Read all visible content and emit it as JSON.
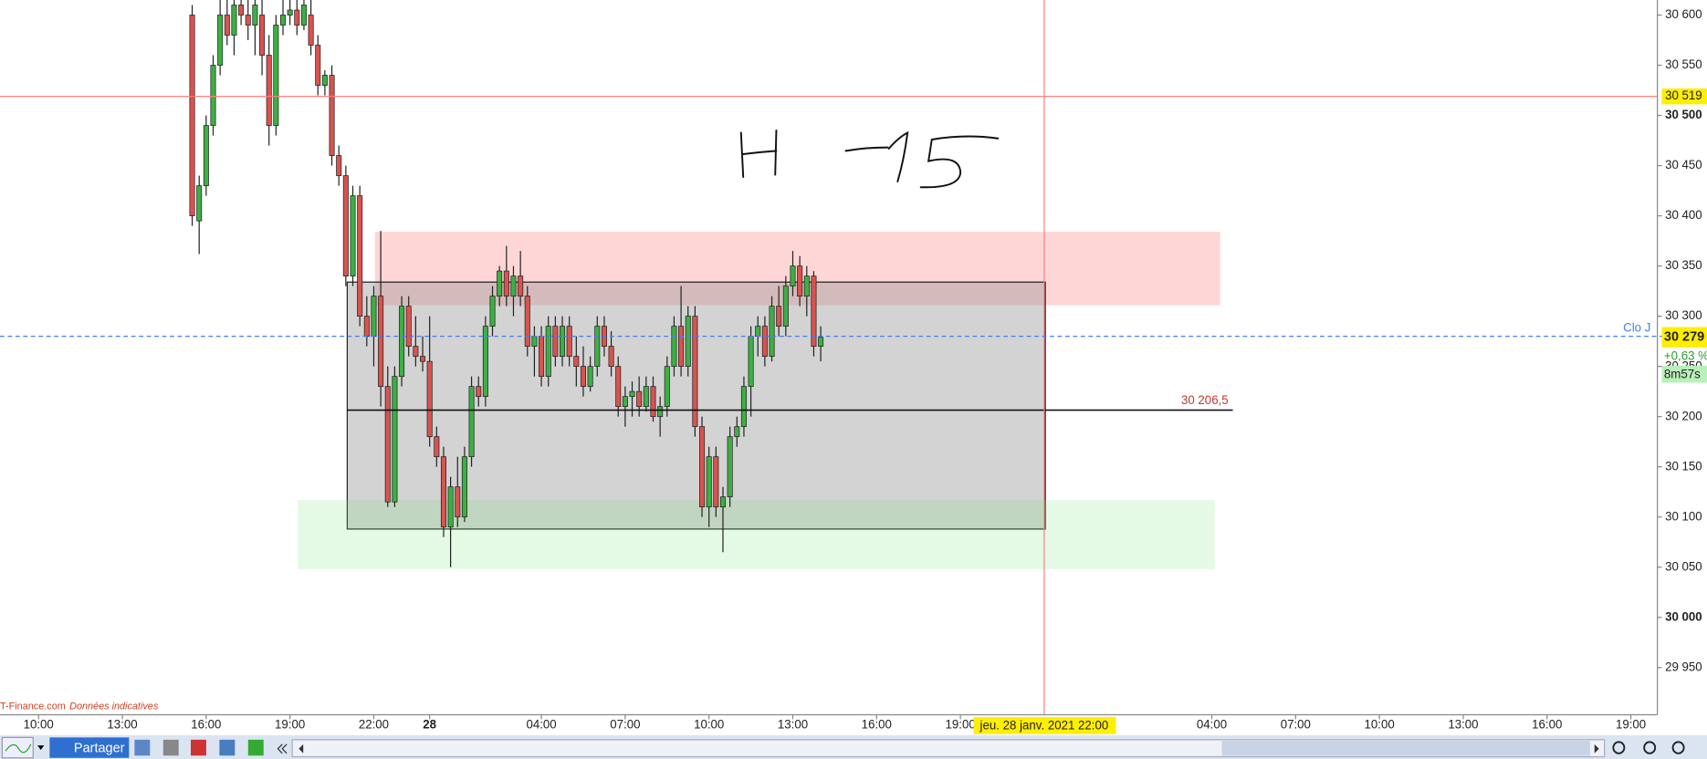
{
  "chart_data": {
    "type": "candlestick",
    "x": [
      15.5,
      15.75,
      16,
      16.25,
      16.5,
      16.75,
      17,
      17.25,
      17.5,
      17.75,
      18,
      18.25,
      18.5,
      18.75,
      19,
      19.25,
      19.5,
      19.75,
      20,
      20.25,
      20.5,
      20.75,
      21,
      21.25,
      21.5,
      21.75,
      22,
      22.25,
      22.5,
      22.75,
      23,
      23.25,
      23.5,
      23.75,
      24,
      24.25,
      24.5,
      24.75,
      25,
      25.25,
      25.5,
      25.75,
      26,
      26.25,
      26.5,
      26.75,
      27,
      27.25,
      27.5,
      27.75,
      28,
      28.25,
      28.5,
      28.75,
      29,
      29.25,
      29.5,
      29.75,
      30,
      30.25,
      30.5,
      30.75,
      31,
      31.25,
      31.5,
      31.75,
      32,
      32.25,
      32.5,
      32.75,
      33,
      33.25,
      33.5,
      33.75,
      34,
      34.25,
      34.5,
      34.75,
      35,
      35.25,
      35.5,
      35.75,
      36,
      36.25,
      36.5,
      36.75,
      37,
      37.25,
      37.5,
      37.75,
      38
    ],
    "open": [
      30600,
      30395,
      30430,
      30490,
      30550,
      30600,
      30580,
      30610,
      30600,
      30590,
      30600,
      30560,
      30490,
      30590,
      30600,
      30605,
      30590,
      30600,
      30570,
      30530,
      30540,
      30460,
      30440,
      30340,
      30420,
      30300,
      30280,
      30320,
      30230,
      30115,
      30240,
      30310,
      30270,
      30260,
      30255,
      30180,
      30160,
      30090,
      30130,
      30100,
      30160,
      30230,
      30220,
      30290,
      30320,
      30345,
      30320,
      30340,
      30320,
      30270,
      30280,
      30240,
      30290,
      30260,
      30290,
      30260,
      30250,
      30230,
      30250,
      30290,
      30270,
      30250,
      30210,
      30220,
      30225,
      30210,
      30230,
      30200,
      30210,
      30250,
      30290,
      30250,
      30300,
      30190,
      30110,
      30160,
      30110,
      30120,
      30180,
      30190,
      30230,
      30280,
      30290,
      30260,
      30310,
      30290,
      30330,
      30350,
      30320,
      30340,
      30270
    ],
    "high": [
      30610,
      30440,
      30500,
      30560,
      30615,
      30615,
      30615,
      30615,
      30615,
      30615,
      30615,
      30580,
      30600,
      30615,
      30615,
      30615,
      30615,
      30615,
      30580,
      30545,
      30550,
      30470,
      30450,
      30430,
      30430,
      30320,
      30330,
      30385,
      30250,
      30250,
      30320,
      30320,
      30300,
      30280,
      30300,
      30190,
      30170,
      30140,
      30160,
      30170,
      30240,
      30240,
      30300,
      30330,
      30350,
      30370,
      30350,
      30365,
      30330,
      30290,
      30290,
      30300,
      30300,
      30300,
      30300,
      30280,
      30270,
      30260,
      30300,
      30300,
      30285,
      30260,
      30230,
      30235,
      30240,
      30240,
      30240,
      30220,
      30260,
      30300,
      30330,
      30310,
      30310,
      30200,
      30170,
      30170,
      30130,
      30190,
      30200,
      30240,
      30290,
      30300,
      30300,
      30320,
      30330,
      30340,
      30365,
      30360,
      30350,
      30345,
      30290
    ],
    "low": [
      30390,
      30362,
      30420,
      30480,
      30540,
      30570,
      30560,
      30590,
      30575,
      30560,
      30540,
      30470,
      30480,
      30580,
      30590,
      30580,
      30585,
      30560,
      30520,
      30520,
      30450,
      30430,
      30330,
      30330,
      30290,
      30270,
      30250,
      30210,
      30110,
      30110,
      30230,
      30260,
      30250,
      30245,
      30170,
      30150,
      30080,
      30050,
      30090,
      30095,
      30150,
      30210,
      30210,
      30280,
      30310,
      30310,
      30300,
      30310,
      30260,
      30240,
      30230,
      30230,
      30250,
      30250,
      30250,
      30230,
      30220,
      30225,
      30240,
      30260,
      30240,
      30200,
      30190,
      30200,
      30200,
      30205,
      30195,
      30180,
      30200,
      30240,
      30240,
      30240,
      30180,
      30100,
      30090,
      30100,
      30065,
      30110,
      30170,
      30180,
      30200,
      30260,
      30250,
      30255,
      30280,
      30280,
      30320,
      30310,
      30300,
      30260,
      30255
    ],
    "close": [
      30400,
      30430,
      30490,
      30550,
      30600,
      30580,
      30610,
      30600,
      30590,
      30610,
      30560,
      30490,
      30590,
      30600,
      30605,
      30590,
      30610,
      30570,
      30530,
      30540,
      30460,
      30440,
      30340,
      30420,
      30300,
      30280,
      30320,
      30230,
      30115,
      30240,
      30310,
      30270,
      30260,
      30255,
      30180,
      30160,
      30090,
      30130,
      30100,
      30160,
      30230,
      30220,
      30290,
      30320,
      30345,
      30320,
      30340,
      30320,
      30270,
      30280,
      30240,
      30290,
      30260,
      30290,
      30260,
      30250,
      30230,
      30250,
      30290,
      30270,
      30250,
      30210,
      30220,
      30225,
      30210,
      30230,
      30200,
      30210,
      30250,
      30290,
      30250,
      30300,
      30190,
      30110,
      30160,
      30110,
      30120,
      30180,
      30190,
      30230,
      30280,
      30290,
      30260,
      30310,
      30290,
      30330,
      30350,
      30320,
      30340,
      30270,
      30279
    ],
    "up_color": "#3cb043",
    "down_color": "#d9534f",
    "xlim": [
      8.62,
      67.95
    ],
    "xticks": [
      {
        "value": 10,
        "label": "10:00"
      },
      {
        "value": 13,
        "label": "13:00"
      },
      {
        "value": 16,
        "label": "16:00"
      },
      {
        "value": 19,
        "label": "19:00"
      },
      {
        "value": 22,
        "label": "22:00"
      },
      {
        "value": 24,
        "label": "28"
      },
      {
        "value": 28,
        "label": "04:00"
      },
      {
        "value": 31,
        "label": "07:00"
      },
      {
        "value": 34,
        "label": "10:00"
      },
      {
        "value": 37,
        "label": "13:00"
      },
      {
        "value": 40,
        "label": "16:00"
      },
      {
        "value": 43,
        "label": "19:00"
      },
      {
        "value": 52,
        "label": "04:00"
      },
      {
        "value": 55,
        "label": "07:00"
      },
      {
        "value": 58,
        "label": "10:00"
      },
      {
        "value": 61,
        "label": "13:00"
      },
      {
        "value": 64,
        "label": "16:00"
      },
      {
        "value": 67,
        "label": "19:00"
      }
    ],
    "ylim": [
      29903,
      30615
    ],
    "yticks": [
      {
        "value": 30600,
        "label": "30 600"
      },
      {
        "value": 30550,
        "label": "30 550"
      },
      {
        "value": 30500,
        "label": "30 500"
      },
      {
        "value": 30450,
        "label": "30 450"
      },
      {
        "value": 30400,
        "label": "30 400"
      },
      {
        "value": 30350,
        "label": "30 350"
      },
      {
        "value": 30300,
        "label": "30 300"
      },
      {
        "value": 30250,
        "label": "30 250"
      },
      {
        "value": 30200,
        "label": "30 200"
      },
      {
        "value": 30150,
        "label": "30 150"
      },
      {
        "value": 30100,
        "label": "30 100"
      },
      {
        "value": 30050,
        "label": "30 050"
      },
      {
        "value": 30000,
        "label": "30 000"
      },
      {
        "value": 29950,
        "label": "29 950"
      }
    ],
    "price_line": {
      "value": 30519,
      "label": "30 519",
      "color": "#ff8080"
    },
    "close_line": {
      "value": 30280,
      "label": "Clo J",
      "color": "#4a7cf0"
    },
    "level_line": {
      "value": 30206.5,
      "label": "30 206,5",
      "x_range": [
        21.05,
        52.75
      ]
    },
    "zones": [
      {
        "xmin": 22.04,
        "xmax": 52.3,
        "ymin": 30311,
        "ymax": 30384,
        "color": "rgba(255,120,120,0.3)"
      },
      {
        "xmin": 21.05,
        "xmax": 46.04,
        "ymin": 30088,
        "ymax": 30334,
        "color": "rgba(150,150,150,0.42)"
      },
      {
        "xmin": 19.28,
        "xmax": 52.1,
        "ymin": 30048,
        "ymax": 30117,
        "color": "rgba(120,230,120,0.2)"
      }
    ],
    "cursor": {
      "x": 46,
      "label": "jeu. 28 janv. 2021 22:00",
      "color": "#ff8080"
    },
    "last_price": {
      "value": 30279,
      "label": "30 279",
      "change": "+0,63 %",
      "countdown": "8m57s"
    }
  },
  "footer": {
    "source": "T-Finance.com",
    "note": "Données indicatives"
  },
  "toolbar": {
    "share": "Partager"
  }
}
